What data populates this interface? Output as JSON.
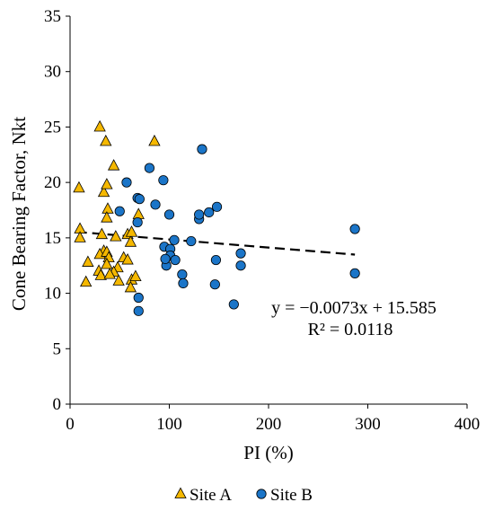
{
  "chart_data": {
    "type": "scatter",
    "xlabel": "PI (%)",
    "ylabel": "Cone Bearing Factor, Nkt",
    "xlim": [
      0,
      400
    ],
    "ylim": [
      0,
      35
    ],
    "xticks": [
      0,
      100,
      200,
      300,
      400
    ],
    "yticks": [
      0,
      5,
      10,
      15,
      20,
      25,
      30,
      35
    ],
    "grid": false,
    "legend_position": "bottom",
    "series": [
      {
        "name": "Site A",
        "marker": "triangle",
        "color": "#F5B800",
        "points": [
          [
            9,
            19.5
          ],
          [
            10,
            15.8
          ],
          [
            10,
            15.0
          ],
          [
            16,
            11.0
          ],
          [
            18,
            12.8
          ],
          [
            30,
            25.0
          ],
          [
            36,
            23.7
          ],
          [
            44,
            21.5
          ],
          [
            34,
            19.1
          ],
          [
            37,
            19.8
          ],
          [
            38,
            17.6
          ],
          [
            37,
            16.8
          ],
          [
            32,
            15.3
          ],
          [
            46,
            15.1
          ],
          [
            34,
            13.8
          ],
          [
            30,
            13.5
          ],
          [
            37,
            13.7
          ],
          [
            39,
            13.2
          ],
          [
            37,
            12.6
          ],
          [
            29,
            12.0
          ],
          [
            48,
            12.3
          ],
          [
            44,
            11.9
          ],
          [
            31,
            11.6
          ],
          [
            40,
            11.7
          ],
          [
            49,
            11.1
          ],
          [
            54,
            13.2
          ],
          [
            58,
            13.0
          ],
          [
            58,
            15.3
          ],
          [
            61,
            14.6
          ],
          [
            62,
            11.2
          ],
          [
            66,
            11.5
          ],
          [
            61,
            10.5
          ],
          [
            85,
            23.7
          ],
          [
            69,
            17.1
          ],
          [
            62,
            15.5
          ]
        ]
      },
      {
        "name": "Site B",
        "marker": "circle",
        "color": "#1B75C8",
        "points": [
          [
            50,
            17.4
          ],
          [
            57,
            20.0
          ],
          [
            68,
            18.6
          ],
          [
            70,
            18.5
          ],
          [
            68,
            16.4
          ],
          [
            80,
            21.3
          ],
          [
            86,
            18.0
          ],
          [
            94,
            20.2
          ],
          [
            100,
            17.1
          ],
          [
            95,
            14.2
          ],
          [
            101,
            14.0
          ],
          [
            101,
            13.4
          ],
          [
            97,
            12.5
          ],
          [
            96,
            13.1
          ],
          [
            105,
            14.8
          ],
          [
            106,
            13.0
          ],
          [
            113,
            11.7
          ],
          [
            114,
            10.9
          ],
          [
            122,
            14.7
          ],
          [
            130,
            16.7
          ],
          [
            130,
            17.1
          ],
          [
            133,
            23.0
          ],
          [
            140,
            17.3
          ],
          [
            148,
            17.8
          ],
          [
            147,
            13.0
          ],
          [
            146,
            10.8
          ],
          [
            165,
            9.0
          ],
          [
            172,
            13.6
          ],
          [
            172,
            12.5
          ],
          [
            69,
            9.6
          ],
          [
            69,
            8.4
          ],
          [
            287,
            15.8
          ],
          [
            287,
            11.8
          ]
        ]
      }
    ],
    "trendline": {
      "style": "dashed",
      "slope": -0.0073,
      "intercept": 15.585,
      "x_range": [
        7,
        287
      ],
      "equation": "y = −0.0073x + 15.585",
      "r2": "R² = 0.0118"
    }
  }
}
